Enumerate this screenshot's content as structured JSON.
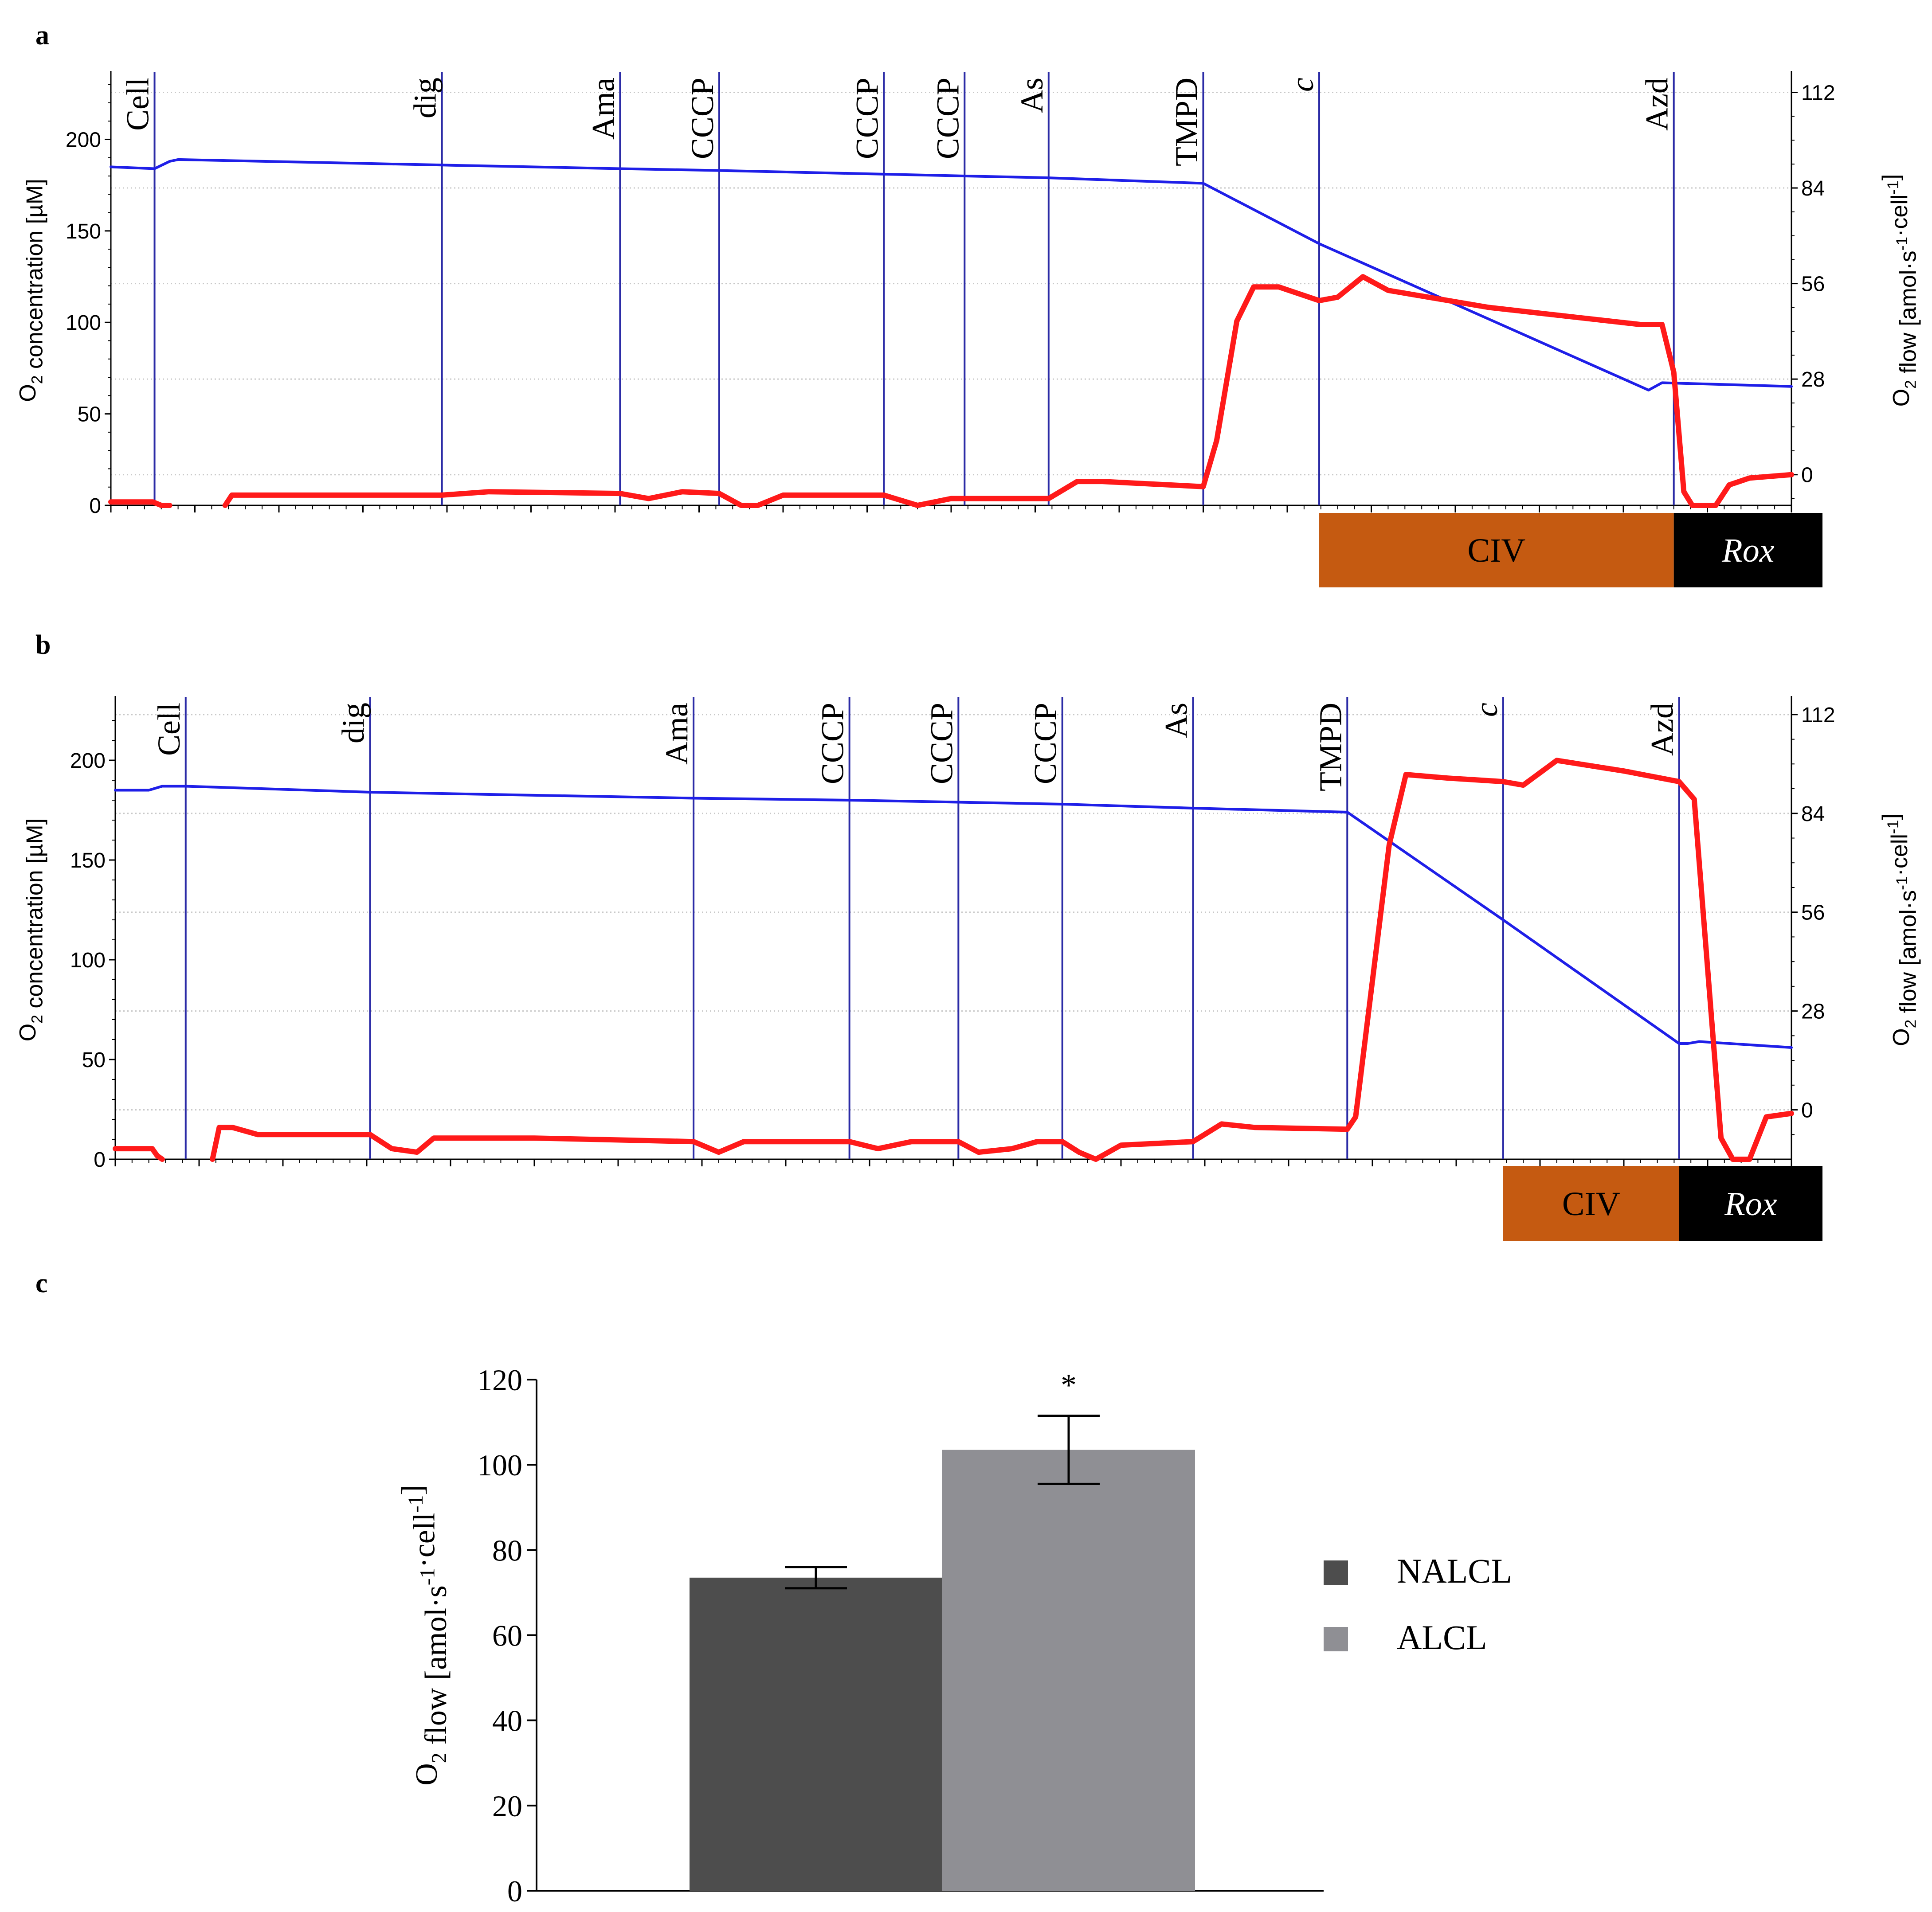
{
  "chart_data": [
    {
      "panel": "a",
      "type": "line",
      "ylabel_left": "O2 concentration [µM]",
      "ylabel_right": "O2 flow [amol·s-1·cell-1]",
      "ylim_left": [
        0,
        235
      ],
      "ylim_right": [
        -9,
        117
      ],
      "yticks_left": [
        0,
        50,
        100,
        150,
        200
      ],
      "yticks_right": [
        0,
        28,
        56,
        84,
        112
      ],
      "x_range": [
        0,
        100
      ],
      "events": [
        {
          "label": "Cell",
          "x": 2.6,
          "italic": false
        },
        {
          "label": "dig",
          "x": 19.7,
          "italic": false
        },
        {
          "label": "Ama",
          "x": 30.3,
          "italic": false
        },
        {
          "label": "CCCP",
          "x": 36.2,
          "italic": false
        },
        {
          "label": "CCCP",
          "x": 46.0,
          "italic": false
        },
        {
          "label": "CCCP",
          "x": 50.8,
          "italic": false
        },
        {
          "label": "As",
          "x": 55.8,
          "italic": false
        },
        {
          "label": "TMPD",
          "x": 65.0,
          "italic": false
        },
        {
          "label": "c",
          "x": 71.9,
          "italic": true
        },
        {
          "label": "Azd",
          "x": 93.0,
          "italic": false
        }
      ],
      "series": [
        {
          "name": "O2 concentration",
          "axis": "left",
          "color": "#1f1fe8",
          "points": [
            [
              0,
              185
            ],
            [
              2.6,
              184
            ],
            [
              3.5,
              188
            ],
            [
              4.0,
              189
            ],
            [
              19.7,
              186
            ],
            [
              30.3,
              184
            ],
            [
              36.2,
              183
            ],
            [
              46.0,
              181
            ],
            [
              50.8,
              180
            ],
            [
              55.8,
              179
            ],
            [
              65.0,
              176
            ],
            [
              71.9,
              143
            ],
            [
              91.5,
              63
            ],
            [
              92.3,
              67
            ],
            [
              100,
              65
            ]
          ]
        },
        {
          "name": "O2 flow",
          "axis": "right",
          "color": "#ff1a1a",
          "points": [
            [
              0,
              -8
            ],
            [
              2.5,
              -8
            ],
            [
              3.0,
              -9
            ],
            [
              3.5,
              -9
            ],
            [
              4.0,
              null
            ],
            [
              6.5,
              null
            ],
            [
              6.8,
              -9
            ],
            [
              7.2,
              -6
            ],
            [
              19.7,
              -6
            ],
            [
              22.5,
              -5
            ],
            [
              30.3,
              -5.5
            ],
            [
              32.0,
              -7
            ],
            [
              34.0,
              -5
            ],
            [
              36.2,
              -5.5
            ],
            [
              37.5,
              -9
            ],
            [
              38.5,
              -9
            ],
            [
              40.0,
              -6
            ],
            [
              46.0,
              -6
            ],
            [
              48.0,
              -9
            ],
            [
              50.0,
              -7
            ],
            [
              55.8,
              -7
            ],
            [
              57.5,
              -2
            ],
            [
              59.0,
              -2
            ],
            [
              65.0,
              -3.5
            ],
            [
              65.8,
              10
            ],
            [
              67.0,
              45
            ],
            [
              68.0,
              55
            ],
            [
              69.5,
              55
            ],
            [
              71.9,
              51
            ],
            [
              73.0,
              52
            ],
            [
              74.5,
              58
            ],
            [
              76.0,
              54
            ],
            [
              82.0,
              49
            ],
            [
              91.0,
              44
            ],
            [
              92.3,
              44
            ],
            [
              93.0,
              30
            ],
            [
              93.6,
              -5
            ],
            [
              94.1,
              -9
            ],
            [
              95.5,
              -9
            ],
            [
              96.3,
              -3
            ],
            [
              97.5,
              -1
            ],
            [
              100,
              0
            ]
          ]
        }
      ],
      "bands": [
        {
          "label": "CIV",
          "from": 71.9,
          "to": 93.0,
          "color": "#c55a11",
          "italic": false
        },
        {
          "label": "Rox",
          "from": 93.0,
          "to": 100,
          "color": "#000000",
          "italic": true
        }
      ]
    },
    {
      "panel": "b",
      "type": "line",
      "ylabel_left": "O2 concentration [µM]",
      "ylabel_right": "O2 flow [amol·s-1·cell-1]",
      "ylim_left": [
        0,
        230
      ],
      "ylim_right": [
        -14,
        116
      ],
      "yticks_left": [
        0,
        50,
        100,
        150,
        200
      ],
      "yticks_right": [
        0,
        28,
        56,
        84,
        112
      ],
      "x_range": [
        0,
        100
      ],
      "events": [
        {
          "label": "Cell",
          "x": 4.2,
          "italic": false
        },
        {
          "label": "dig",
          "x": 15.2,
          "italic": false
        },
        {
          "label": "Ama",
          "x": 34.5,
          "italic": false
        },
        {
          "label": "CCCP",
          "x": 43.8,
          "italic": false
        },
        {
          "label": "CCCP",
          "x": 50.3,
          "italic": false
        },
        {
          "label": "CCCP",
          "x": 56.5,
          "italic": false
        },
        {
          "label": "As",
          "x": 64.3,
          "italic": false
        },
        {
          "label": "TMPD",
          "x": 73.5,
          "italic": false
        },
        {
          "label": "c",
          "x": 82.8,
          "italic": true
        },
        {
          "label": "Azd",
          "x": 93.3,
          "italic": false
        }
      ],
      "series": [
        {
          "name": "O2 concentration",
          "axis": "left",
          "color": "#1f1fe8",
          "points": [
            [
              0,
              185
            ],
            [
              2.0,
              185
            ],
            [
              2.8,
              187
            ],
            [
              4.2,
              187
            ],
            [
              15.2,
              184
            ],
            [
              34.5,
              181
            ],
            [
              43.8,
              180
            ],
            [
              50.3,
              179
            ],
            [
              56.5,
              178
            ],
            [
              64.3,
              176
            ],
            [
              73.5,
              174
            ],
            [
              82.8,
              120
            ],
            [
              93.3,
              58
            ],
            [
              93.8,
              58
            ],
            [
              94.5,
              59
            ],
            [
              100,
              56
            ]
          ]
        },
        {
          "name": "O2 flow",
          "axis": "right",
          "color": "#ff1a1a",
          "points": [
            [
              0,
              -11
            ],
            [
              2.2,
              -11
            ],
            [
              2.5,
              -13
            ],
            [
              2.8,
              -14
            ],
            [
              3.0,
              null
            ],
            [
              5.5,
              null
            ],
            [
              5.8,
              -14
            ],
            [
              6.2,
              -5
            ],
            [
              7.0,
              -5
            ],
            [
              8.5,
              -7
            ],
            [
              15.2,
              -7
            ],
            [
              16.5,
              -11
            ],
            [
              18.0,
              -12
            ],
            [
              19.0,
              -8
            ],
            [
              25.0,
              -8
            ],
            [
              34.5,
              -9
            ],
            [
              36.0,
              -12
            ],
            [
              37.5,
              -9
            ],
            [
              43.8,
              -9
            ],
            [
              45.5,
              -11
            ],
            [
              47.5,
              -9
            ],
            [
              50.3,
              -9
            ],
            [
              51.5,
              -12
            ],
            [
              53.5,
              -11
            ],
            [
              55.0,
              -9
            ],
            [
              56.5,
              -9
            ],
            [
              57.5,
              -12
            ],
            [
              58.5,
              -14
            ],
            [
              60.0,
              -10
            ],
            [
              64.3,
              -9
            ],
            [
              66.0,
              -4
            ],
            [
              68.0,
              -5
            ],
            [
              73.5,
              -5.5
            ],
            [
              74.0,
              -2
            ],
            [
              76.0,
              75
            ],
            [
              77.0,
              95
            ],
            [
              79.5,
              94
            ],
            [
              82.8,
              93
            ],
            [
              84.0,
              92
            ],
            [
              86.0,
              99
            ],
            [
              90.0,
              96
            ],
            [
              93.3,
              93
            ],
            [
              94.2,
              88
            ],
            [
              95.0,
              40
            ],
            [
              95.8,
              -8
            ],
            [
              96.5,
              -14
            ],
            [
              97.5,
              -14
            ],
            [
              98.5,
              -2
            ],
            [
              100,
              -1
            ]
          ]
        }
      ],
      "bands": [
        {
          "label": "CIV",
          "from": 82.8,
          "to": 93.3,
          "color": "#c55a11",
          "italic": false
        },
        {
          "label": "Rox",
          "from": 93.3,
          "to": 100,
          "color": "#000000",
          "italic": true
        }
      ]
    },
    {
      "panel": "c",
      "type": "bar",
      "ylabel": "O2 flow [amol·s-1·cell-1]",
      "ylim": [
        0,
        120
      ],
      "yticks": [
        0,
        20,
        40,
        60,
        80,
        100,
        120
      ],
      "categories": [
        "NALCL",
        "ALCL"
      ],
      "values": [
        73.5,
        103.5
      ],
      "errors": [
        2.5,
        8
      ],
      "colors": [
        "#4d4d4d",
        "#8f8f94"
      ],
      "annotations": [
        {
          "category": "ALCL",
          "text": "*"
        }
      ],
      "legend": [
        {
          "label": "NALCL",
          "color": "#4d4d4d"
        },
        {
          "label": "ALCL",
          "color": "#8f8f94"
        }
      ]
    }
  ]
}
